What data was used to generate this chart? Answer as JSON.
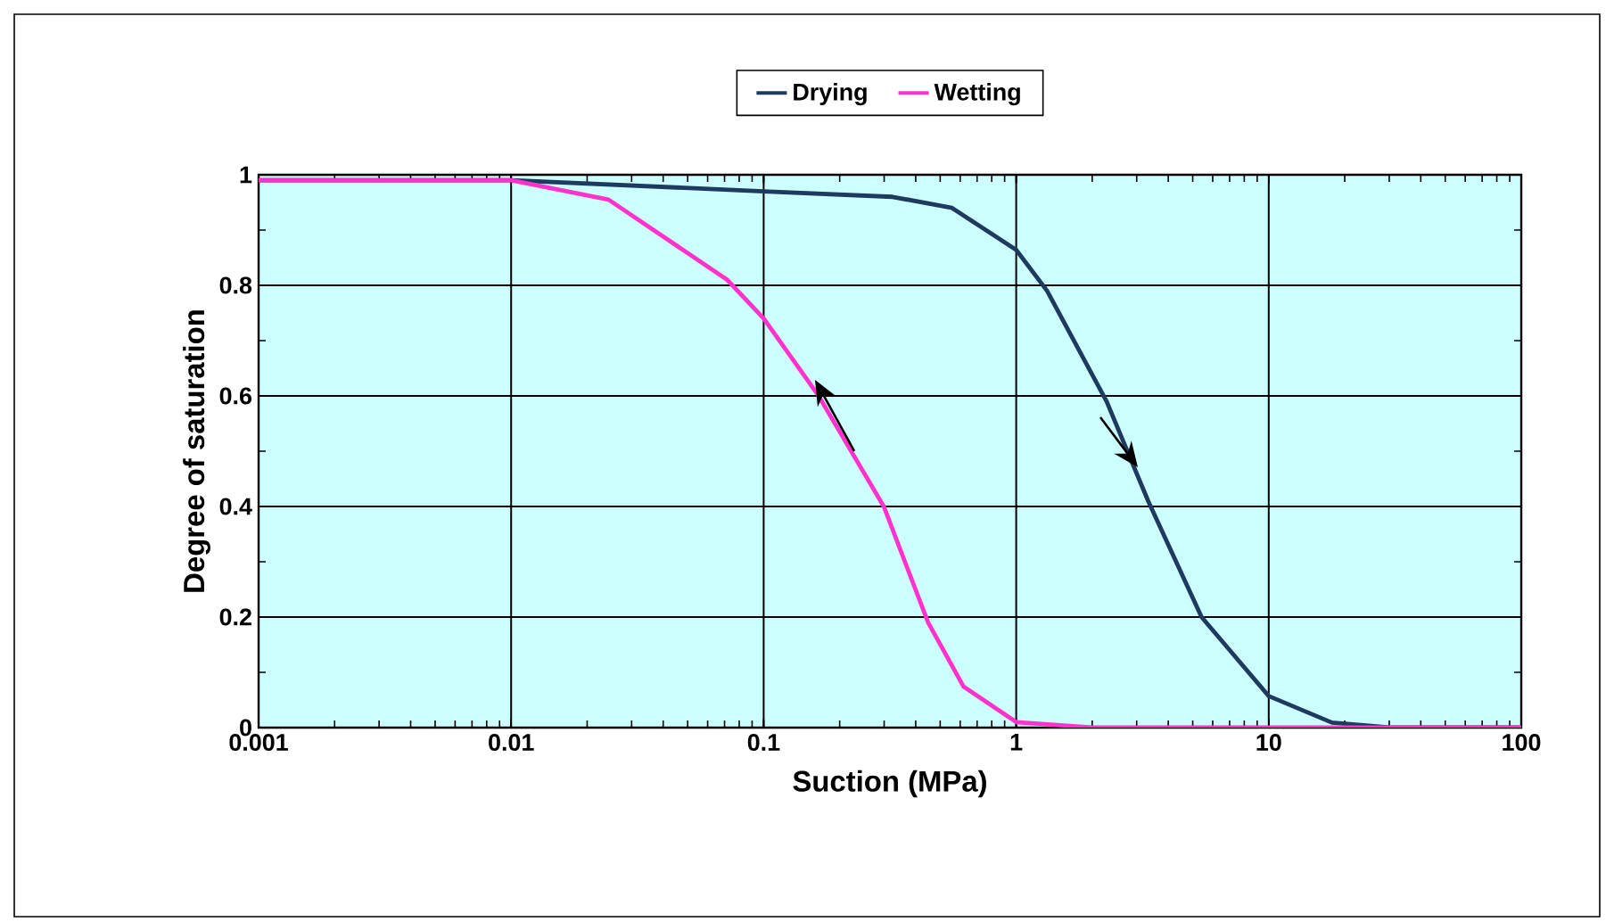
{
  "chart_data": {
    "type": "line",
    "xlabel": "Suction (MPa)",
    "ylabel": "Degree of saturation",
    "log": "x",
    "grid": true,
    "legend": "top",
    "marker": "none",
    "xlim": [
      0.001,
      100
    ],
    "xticks": [
      0.001,
      0.01,
      0.1,
      1,
      10,
      100
    ],
    "ylim": [
      0,
      1
    ],
    "yticks": [
      0,
      0.2,
      0.4,
      0.6,
      0.8,
      1
    ],
    "series": [
      {
        "name": "Drying",
        "color": "#1f3a5f",
        "x": [
          0.001,
          0.01,
          0.1,
          0.324,
          0.557,
          1,
          1.325,
          2.28,
          3.33,
          5.42,
          10,
          17.8,
          30,
          100
        ],
        "values": [
          0.99,
          0.99,
          0.97,
          0.96,
          0.94,
          0.864,
          0.79,
          0.59,
          0.41,
          0.2,
          0.057,
          0.009,
          0,
          0
        ]
      },
      {
        "name": "Wetting",
        "color": "#ff33cc",
        "x": [
          0.001,
          0.01,
          0.0243,
          0.0717,
          0.1,
          0.165,
          0.299,
          0.448,
          0.619,
          1,
          2,
          100
        ],
        "values": [
          0.99,
          0.99,
          0.955,
          0.81,
          0.74,
          0.6,
          0.4,
          0.19,
          0.074,
          0.01,
          0,
          0
        ]
      }
    ]
  }
}
